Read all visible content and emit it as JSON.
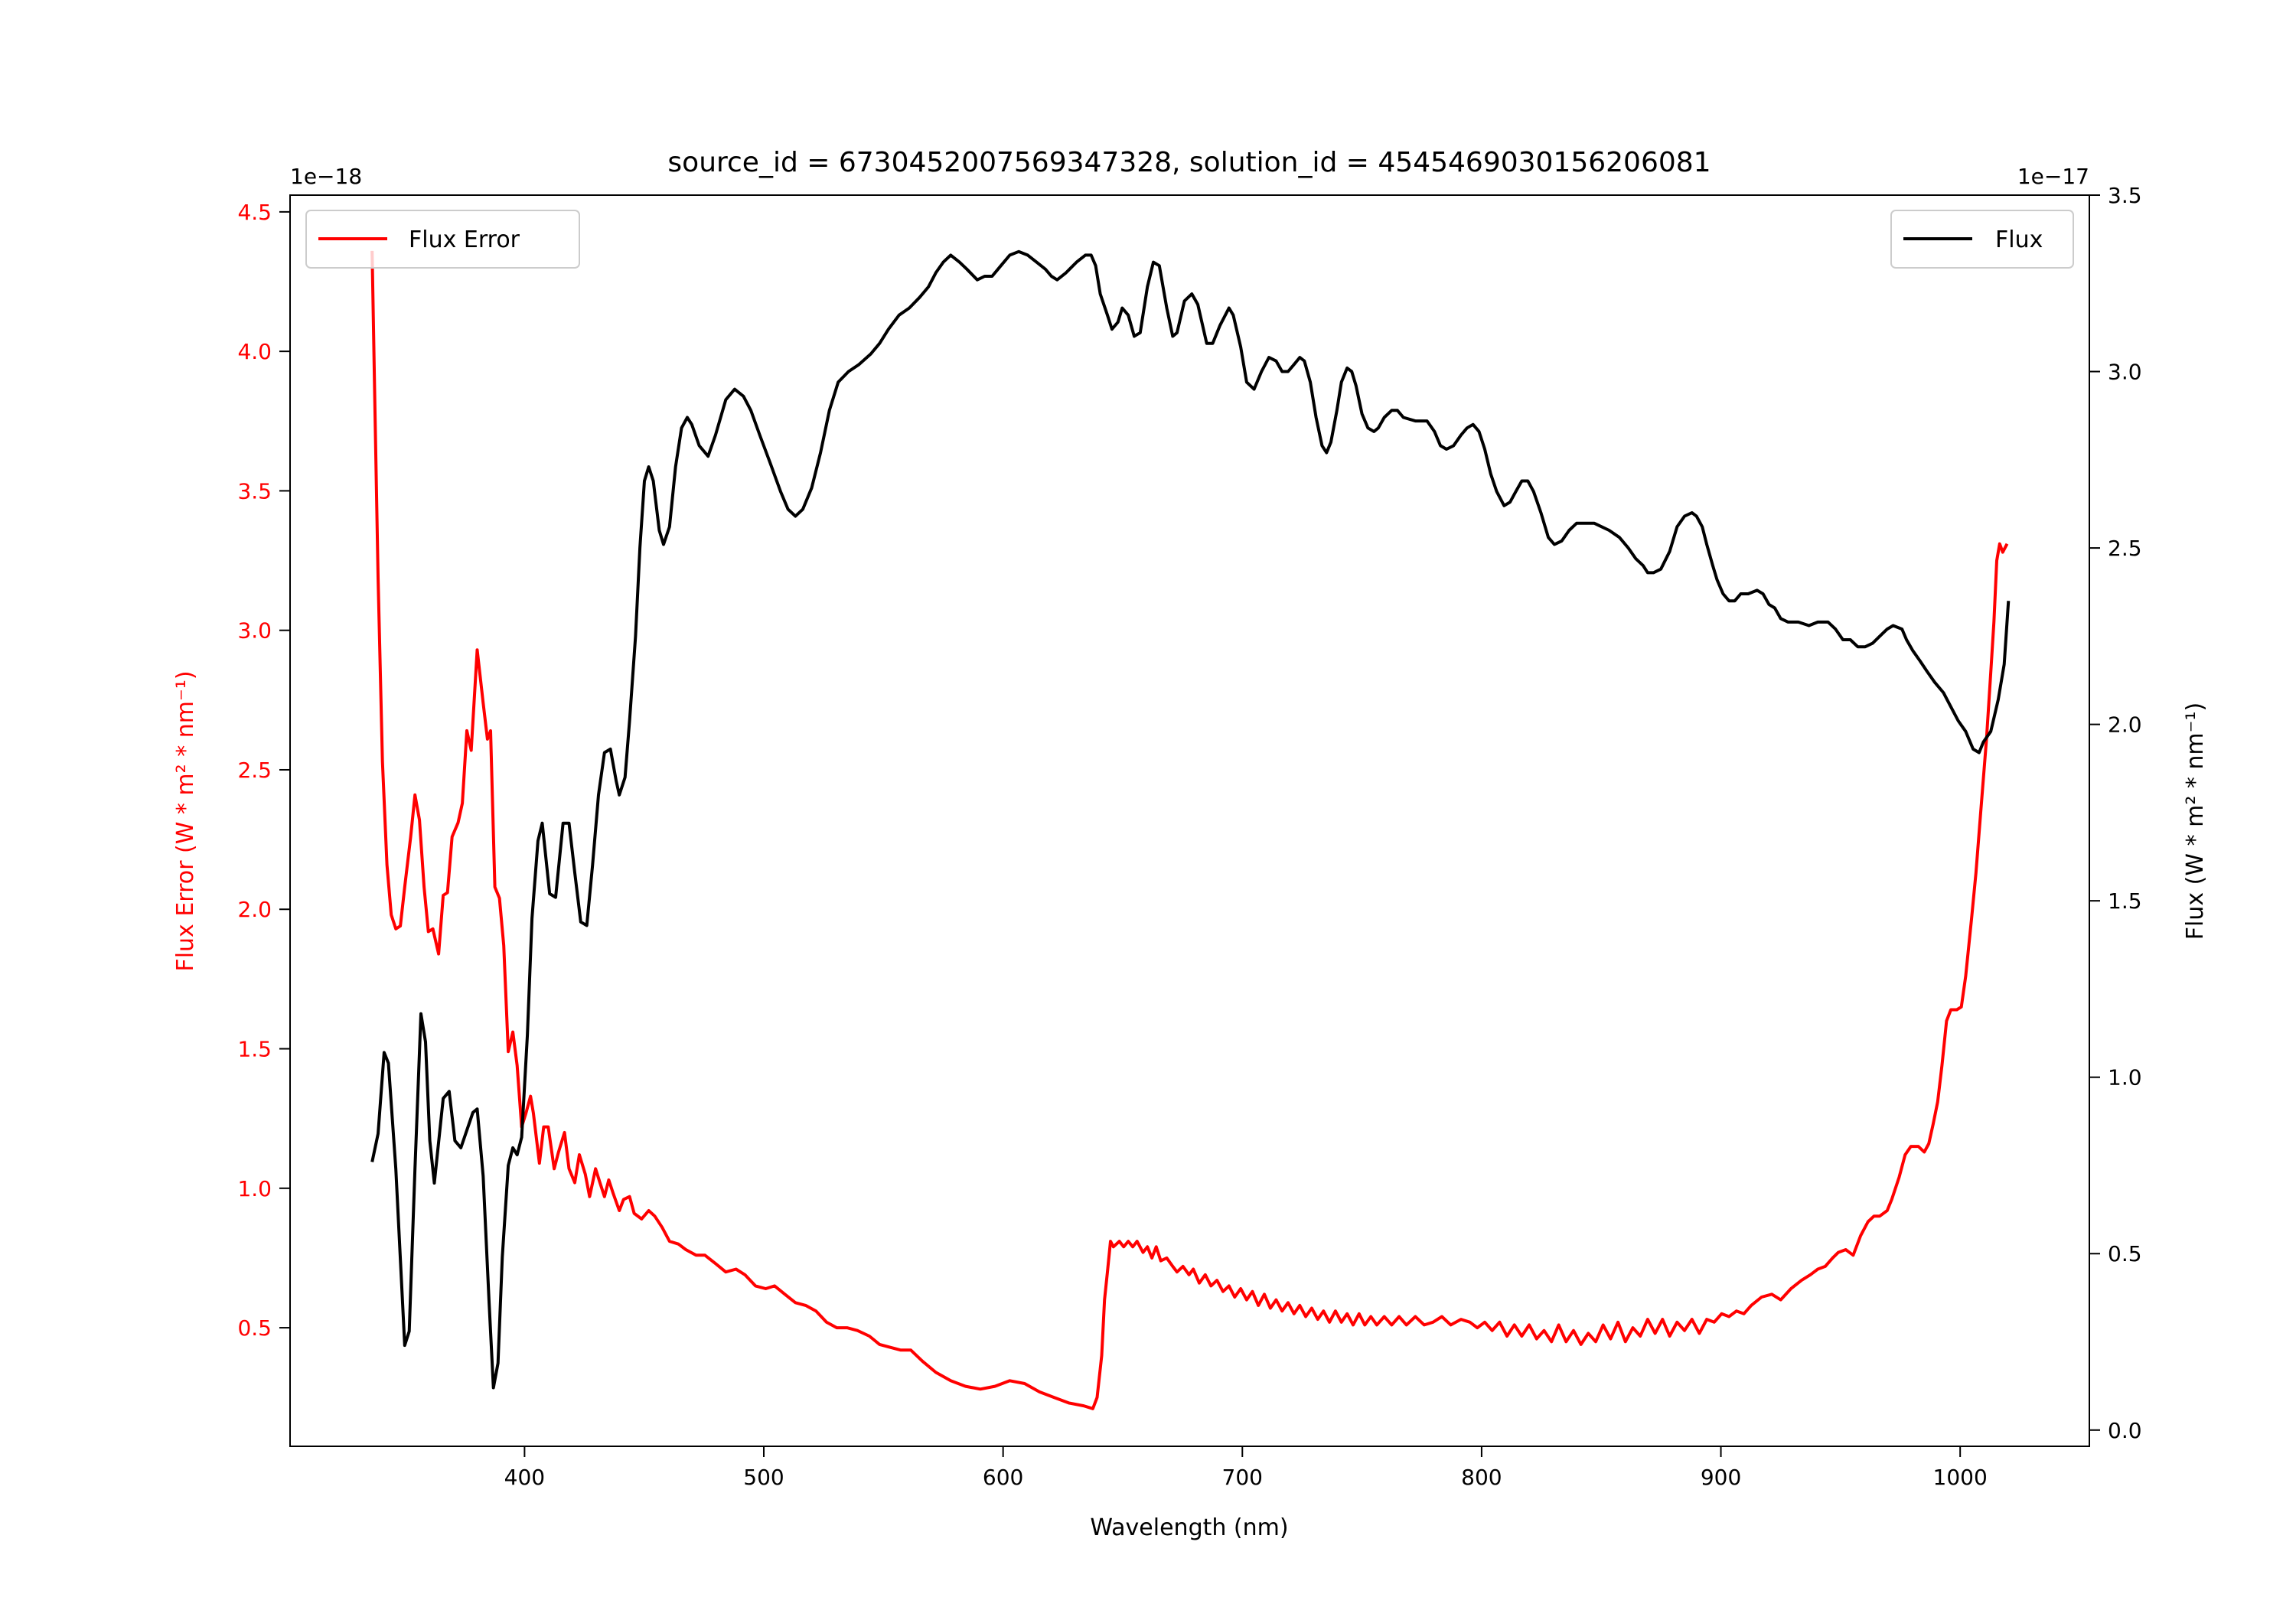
{
  "chart_data": {
    "type": "line",
    "title": "source_id = 6730452007569347328, solution_id = 4545469030156206081",
    "xlabel": "Wavelength (nm)",
    "xlim": [
      302,
      1054
    ],
    "xticks": [
      400,
      500,
      600,
      700,
      800,
      900,
      1000
    ],
    "xtick_labels": [
      "400",
      "500",
      "600",
      "700",
      "800",
      "900",
      "1000"
    ],
    "grid": false,
    "left_axis": {
      "label": "Flux Error (W * m² * nm⁻¹)",
      "offset_text": "1e−18",
      "ylim": [
        0.075,
        4.56
      ],
      "ticks": [
        0.5,
        1.0,
        1.5,
        2.0,
        2.5,
        3.0,
        3.5,
        4.0,
        4.5
      ],
      "tick_labels": [
        "0.5",
        "1.0",
        "1.5",
        "2.0",
        "2.5",
        "3.0",
        "3.5",
        "4.0",
        "4.5"
      ],
      "color": "#ff0000"
    },
    "right_axis": {
      "label": "Flux (W * m² * nm⁻¹)",
      "offset_text": "1e−17",
      "ylim": [
        -0.046,
        3.5
      ],
      "ticks": [
        0.0,
        0.5,
        1.0,
        1.5,
        2.0,
        2.5,
        3.0,
        3.5
      ],
      "tick_labels": [
        "0.0",
        "0.5",
        "1.0",
        "1.5",
        "2.0",
        "2.5",
        "3.0",
        "3.5"
      ],
      "color": "#000000"
    },
    "series": [
      {
        "name": "Flux Error",
        "axis": "left",
        "color": "#ff0000",
        "legend_position": "top-left",
        "x": [
          336.3,
          337.5,
          338.8,
          340.6,
          342.5,
          344.3,
          346.2,
          348.1,
          349.9,
          352.4,
          354.2,
          356.1,
          358.0,
          359.8,
          361.7,
          364.1,
          366.0,
          367.8,
          369.7,
          372.2,
          374.0,
          375.9,
          377.7,
          380.2,
          382.7,
          384.5,
          385.8,
          387.6,
          389.5,
          391.3,
          393.2,
          395.1,
          396.9,
          398.8,
          400.6,
          402.5,
          403.7,
          406.2,
          408.0,
          409.9,
          412.4,
          414.2,
          416.7,
          418.6,
          421.0,
          422.9,
          425.4,
          427.2,
          429.7,
          431.5,
          433.4,
          435.2,
          437.1,
          439.6,
          441.4,
          443.9,
          445.8,
          448.9,
          451.9,
          454.4,
          457.5,
          460.6,
          464.3,
          467.4,
          471.7,
          475.4,
          479.8,
          484.1,
          488.4,
          492.1,
          496.5,
          500.8,
          504.5,
          508.8,
          513.2,
          517.5,
          521.8,
          526.2,
          530.5,
          534.8,
          539.1,
          544.1,
          548.4,
          552.7,
          557.1,
          561.4,
          566.3,
          571.9,
          578.1,
          584.3,
          590.5,
          596.6,
          602.8,
          609.0,
          615.2,
          621.4,
          627.6,
          633.7,
          637.5,
          639.3,
          641.2,
          642.4,
          643.6,
          644.9,
          646.1,
          648.6,
          650.4,
          652.3,
          654.2,
          656.0,
          658.5,
          660.3,
          662.2,
          664.0,
          665.9,
          668.4,
          670.9,
          672.7,
          675.2,
          677.7,
          679.5,
          682.0,
          684.5,
          686.9,
          689.4,
          691.9,
          694.4,
          696.8,
          699.3,
          701.8,
          704.2,
          706.7,
          709.2,
          711.7,
          714.1,
          716.6,
          719.1,
          721.6,
          724.0,
          726.5,
          729.0,
          731.5,
          733.9,
          736.4,
          738.9,
          741.4,
          743.8,
          746.3,
          748.8,
          751.2,
          753.7,
          756.2,
          759.3,
          762.4,
          765.5,
          768.6,
          772.3,
          776.0,
          779.7,
          783.4,
          787.1,
          791.4,
          795.1,
          798.2,
          801.3,
          804.4,
          807.5,
          810.6,
          813.7,
          816.8,
          819.9,
          823.0,
          826.1,
          829.2,
          832.2,
          835.3,
          838.4,
          841.5,
          844.6,
          847.7,
          850.8,
          853.9,
          857.0,
          860.1,
          863.2,
          866.3,
          869.4,
          872.5,
          875.6,
          878.6,
          881.7,
          884.8,
          887.9,
          891.0,
          894.1,
          897.2,
          900.3,
          903.4,
          906.5,
          909.6,
          912.7,
          917.0,
          921.3,
          925.0,
          929.3,
          933.7,
          937.4,
          940.5,
          943.6,
          946.7,
          949.1,
          952.2,
          955.3,
          958.4,
          961.5,
          964.0,
          966.4,
          969.5,
          971.4,
          974.5,
          977.0,
          979.4,
          982.5,
          985.0,
          986.9,
          988.7,
          990.6,
          992.4,
          994.3,
          996.1,
          998.6,
          1000.5,
          1002.3,
          1004.8,
          1006.6,
          1008.5,
          1011.0,
          1012.8,
          1014.1,
          1015.3,
          1016.5,
          1017.8,
          1019.6
        ],
        "y": [
          4.36,
          3.78,
          3.19,
          2.53,
          2.16,
          1.98,
          1.93,
          1.94,
          2.08,
          2.26,
          2.41,
          2.32,
          2.08,
          1.92,
          1.93,
          1.84,
          2.05,
          2.06,
          2.26,
          2.31,
          2.38,
          2.64,
          2.57,
          2.93,
          2.74,
          2.61,
          2.64,
          2.08,
          2.04,
          1.87,
          1.49,
          1.56,
          1.44,
          1.22,
          1.27,
          1.33,
          1.27,
          1.09,
          1.22,
          1.22,
          1.07,
          1.13,
          1.2,
          1.07,
          1.02,
          1.12,
          1.05,
          0.97,
          1.07,
          1.02,
          0.97,
          1.03,
          0.98,
          0.92,
          0.96,
          0.97,
          0.91,
          0.89,
          0.92,
          0.9,
          0.86,
          0.81,
          0.8,
          0.78,
          0.76,
          0.76,
          0.73,
          0.7,
          0.71,
          0.69,
          0.65,
          0.64,
          0.65,
          0.62,
          0.59,
          0.58,
          0.56,
          0.52,
          0.5,
          0.5,
          0.49,
          0.47,
          0.44,
          0.43,
          0.42,
          0.42,
          0.38,
          0.34,
          0.31,
          0.29,
          0.28,
          0.29,
          0.31,
          0.3,
          0.27,
          0.25,
          0.23,
          0.22,
          0.21,
          0.25,
          0.4,
          0.6,
          0.7,
          0.81,
          0.79,
          0.81,
          0.79,
          0.81,
          0.79,
          0.81,
          0.77,
          0.79,
          0.75,
          0.79,
          0.74,
          0.75,
          0.72,
          0.7,
          0.72,
          0.69,
          0.71,
          0.66,
          0.69,
          0.65,
          0.67,
          0.63,
          0.65,
          0.61,
          0.64,
          0.6,
          0.63,
          0.58,
          0.62,
          0.57,
          0.6,
          0.56,
          0.59,
          0.55,
          0.58,
          0.54,
          0.57,
          0.53,
          0.56,
          0.52,
          0.56,
          0.52,
          0.55,
          0.51,
          0.55,
          0.51,
          0.54,
          0.51,
          0.54,
          0.51,
          0.54,
          0.51,
          0.54,
          0.51,
          0.52,
          0.54,
          0.51,
          0.53,
          0.52,
          0.5,
          0.52,
          0.49,
          0.52,
          0.47,
          0.51,
          0.47,
          0.51,
          0.46,
          0.49,
          0.45,
          0.51,
          0.45,
          0.49,
          0.44,
          0.48,
          0.45,
          0.51,
          0.46,
          0.52,
          0.45,
          0.5,
          0.47,
          0.53,
          0.48,
          0.53,
          0.47,
          0.52,
          0.49,
          0.53,
          0.48,
          0.53,
          0.52,
          0.55,
          0.54,
          0.56,
          0.55,
          0.58,
          0.61,
          0.62,
          0.6,
          0.64,
          0.67,
          0.69,
          0.71,
          0.72,
          0.75,
          0.77,
          0.78,
          0.76,
          0.83,
          0.88,
          0.9,
          0.9,
          0.92,
          0.96,
          1.04,
          1.12,
          1.15,
          1.15,
          1.13,
          1.16,
          1.23,
          1.31,
          1.44,
          1.6,
          1.64,
          1.64,
          1.65,
          1.76,
          1.97,
          2.13,
          2.34,
          2.61,
          2.85,
          3.03,
          3.25,
          3.31,
          3.28,
          3.31
        ]
      },
      {
        "name": "Flux",
        "axis": "right",
        "color": "#000000",
        "legend_position": "top-right",
        "x": [
          336.3,
          338.8,
          341.3,
          343.1,
          346.2,
          349.9,
          351.8,
          354.2,
          356.7,
          358.6,
          360.4,
          362.3,
          366.0,
          368.5,
          370.9,
          373.4,
          378.4,
          380.2,
          382.7,
          385.2,
          387.0,
          388.9,
          390.7,
          393.2,
          395.1,
          396.9,
          398.8,
          401.2,
          403.1,
          405.6,
          407.4,
          410.5,
          413.0,
          416.1,
          418.6,
          421.0,
          423.5,
          426.0,
          428.4,
          430.9,
          433.4,
          435.9,
          438.3,
          439.6,
          442.0,
          443.9,
          446.4,
          448.2,
          450.1,
          451.9,
          453.8,
          456.3,
          458.1,
          460.6,
          463.1,
          465.6,
          468.0,
          469.9,
          473.0,
          476.7,
          479.8,
          484.1,
          487.8,
          491.5,
          494.6,
          498.3,
          502.7,
          507.0,
          510.1,
          513.2,
          516.3,
          520.0,
          523.7,
          527.4,
          531.1,
          535.4,
          539.8,
          544.7,
          548.4,
          552.1,
          556.5,
          560.8,
          565.1,
          568.8,
          571.9,
          575.0,
          578.1,
          581.8,
          584.9,
          589.2,
          592.3,
          595.4,
          599.1,
          602.8,
          606.5,
          610.3,
          614.0,
          617.7,
          620.2,
          622.6,
          626.3,
          630.7,
          634.4,
          636.8,
          638.7,
          640.6,
          643.6,
          645.5,
          648.0,
          649.8,
          652.3,
          654.8,
          657.3,
          660.3,
          662.8,
          665.3,
          668.4,
          670.9,
          672.7,
          675.8,
          678.9,
          681.4,
          685.1,
          687.6,
          690.6,
          694.4,
          696.2,
          699.3,
          701.8,
          704.9,
          708.0,
          711.1,
          714.1,
          716.6,
          719.1,
          721.6,
          724.0,
          725.9,
          728.4,
          730.8,
          733.3,
          735.2,
          737.0,
          739.5,
          741.4,
          743.8,
          745.7,
          747.5,
          750.0,
          752.5,
          755.0,
          756.8,
          759.3,
          762.4,
          764.8,
          767.3,
          772.3,
          777.2,
          780.3,
          782.8,
          785.3,
          788.3,
          791.4,
          793.9,
          796.4,
          798.9,
          801.3,
          803.8,
          806.3,
          809.4,
          811.9,
          814.3,
          816.8,
          819.3,
          821.7,
          824.8,
          827.9,
          830.4,
          833.5,
          836.6,
          839.7,
          842.8,
          847.1,
          850.2,
          853.3,
          857.6,
          861.3,
          864.4,
          867.5,
          869.4,
          871.8,
          874.9,
          878.6,
          881.7,
          884.8,
          887.9,
          889.8,
          892.2,
          894.1,
          896.6,
          898.4,
          900.9,
          903.4,
          905.8,
          908.3,
          911.4,
          915.1,
          917.6,
          920.1,
          922.5,
          925.0,
          928.1,
          932.4,
          936.8,
          940.5,
          944.8,
          947.9,
          951.0,
          954.1,
          957.2,
          960.3,
          963.4,
          966.4,
          969.5,
          972.0,
          975.7,
          977.6,
          980.1,
          983.2,
          986.2,
          989.3,
          993.0,
          996.1,
          999.2,
          1002.3,
          1005.4,
          1007.9,
          1009.7,
          1012.8,
          1015.9,
          1018.4,
          1020.2
        ],
        "y": [
          0.76,
          0.84,
          1.07,
          1.04,
          0.74,
          0.24,
          0.28,
          0.74,
          1.18,
          1.1,
          0.82,
          0.7,
          0.94,
          0.96,
          0.82,
          0.8,
          0.9,
          0.91,
          0.72,
          0.36,
          0.12,
          0.19,
          0.49,
          0.75,
          0.8,
          0.78,
          0.83,
          1.12,
          1.45,
          1.67,
          1.72,
          1.52,
          1.51,
          1.72,
          1.72,
          1.58,
          1.44,
          1.43,
          1.6,
          1.8,
          1.92,
          1.93,
          1.84,
          1.8,
          1.85,
          2.01,
          2.25,
          2.5,
          2.69,
          2.73,
          2.69,
          2.55,
          2.51,
          2.56,
          2.73,
          2.84,
          2.87,
          2.85,
          2.79,
          2.76,
          2.82,
          2.92,
          2.95,
          2.93,
          2.89,
          2.82,
          2.74,
          2.66,
          2.61,
          2.59,
          2.61,
          2.67,
          2.77,
          2.89,
          2.97,
          3.0,
          3.02,
          3.05,
          3.08,
          3.12,
          3.16,
          3.18,
          3.21,
          3.24,
          3.28,
          3.31,
          3.33,
          3.31,
          3.29,
          3.26,
          3.27,
          3.27,
          3.3,
          3.33,
          3.34,
          3.33,
          3.31,
          3.29,
          3.27,
          3.26,
          3.28,
          3.31,
          3.33,
          3.33,
          3.3,
          3.22,
          3.16,
          3.12,
          3.14,
          3.18,
          3.16,
          3.1,
          3.11,
          3.24,
          3.31,
          3.3,
          3.18,
          3.1,
          3.11,
          3.2,
          3.22,
          3.19,
          3.08,
          3.08,
          3.13,
          3.18,
          3.16,
          3.07,
          2.97,
          2.95,
          3.0,
          3.04,
          3.03,
          3.0,
          3.0,
          3.02,
          3.04,
          3.03,
          2.97,
          2.87,
          2.79,
          2.77,
          2.8,
          2.89,
          2.97,
          3.01,
          3.0,
          2.96,
          2.88,
          2.84,
          2.83,
          2.84,
          2.87,
          2.89,
          2.89,
          2.87,
          2.86,
          2.86,
          2.83,
          2.79,
          2.78,
          2.79,
          2.82,
          2.84,
          2.85,
          2.83,
          2.78,
          2.71,
          2.66,
          2.62,
          2.63,
          2.66,
          2.69,
          2.69,
          2.66,
          2.6,
          2.53,
          2.51,
          2.52,
          2.55,
          2.57,
          2.57,
          2.57,
          2.56,
          2.55,
          2.53,
          2.5,
          2.47,
          2.45,
          2.43,
          2.43,
          2.44,
          2.49,
          2.56,
          2.59,
          2.6,
          2.59,
          2.56,
          2.51,
          2.45,
          2.41,
          2.37,
          2.35,
          2.35,
          2.37,
          2.37,
          2.38,
          2.37,
          2.34,
          2.33,
          2.3,
          2.29,
          2.29,
          2.28,
          2.29,
          2.29,
          2.27,
          2.24,
          2.24,
          2.22,
          2.22,
          2.23,
          2.25,
          2.27,
          2.28,
          2.27,
          2.24,
          2.21,
          2.18,
          2.15,
          2.12,
          2.09,
          2.05,
          2.01,
          1.98,
          1.93,
          1.92,
          1.95,
          1.98,
          2.07,
          2.17,
          2.35
        ]
      }
    ]
  }
}
